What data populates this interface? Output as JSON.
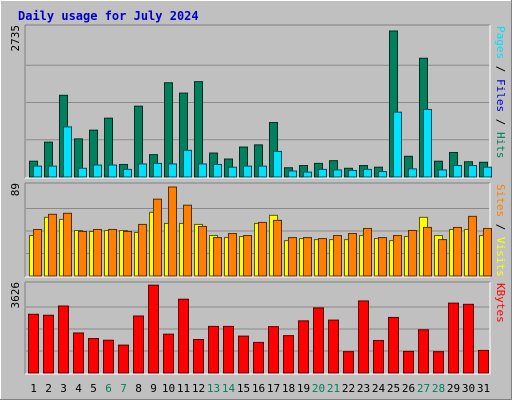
{
  "title": "Daily usage for July 2024",
  "colors": {
    "background": "#c0c0c0",
    "plot_background": "#c0c0c0",
    "hits": "#00805c",
    "files": "#00e0ff",
    "sites": "#ff8000",
    "visits": "#ffff00",
    "kbytes": "#ff0000",
    "title": "#0000cc",
    "weekend_day": "#00805c"
  },
  "chart_data": [
    {
      "type": "bar",
      "panel": "hits-files",
      "ymax_label": "2735",
      "right_label_parts": [
        {
          "text": "Pages",
          "color": "#00e0ff"
        },
        {
          "text": " / ",
          "color": "#000000"
        },
        {
          "text": "Files",
          "color": "#0000cc"
        },
        {
          "text": " / ",
          "color": "#000000"
        },
        {
          "text": "Hits",
          "color": "#00805c"
        }
      ],
      "ylim": [
        0,
        2735
      ],
      "categories": [
        "1",
        "2",
        "3",
        "4",
        "5",
        "6",
        "7",
        "8",
        "9",
        "10",
        "11",
        "12",
        "13",
        "14",
        "15",
        "16",
        "17",
        "18",
        "19",
        "20",
        "21",
        "22",
        "23",
        "24",
        "25",
        "26",
        "27",
        "28",
        "29",
        "30",
        "31"
      ],
      "series": [
        {
          "name": "Hits",
          "color": "#00805c",
          "values": [
            290,
            640,
            1500,
            700,
            860,
            1080,
            230,
            1300,
            410,
            1730,
            1540,
            1750,
            440,
            330,
            550,
            590,
            1000,
            170,
            210,
            250,
            300,
            160,
            210,
            180,
            2680,
            380,
            2180,
            290,
            450,
            280,
            270
          ]
        },
        {
          "name": "Pages",
          "color": "#00e0ff",
          "values": [
            200,
            200,
            920,
            160,
            220,
            220,
            140,
            240,
            250,
            240,
            490,
            240,
            230,
            180,
            200,
            200,
            470,
            110,
            90,
            140,
            130,
            120,
            140,
            100,
            1190,
            150,
            1240,
            130,
            210,
            210,
            180
          ]
        }
      ],
      "legend": "right-vertical"
    },
    {
      "type": "bar",
      "panel": "sites-visits",
      "ymax_label": "89",
      "right_label_parts": [
        {
          "text": "Sites",
          "color": "#ff8000"
        },
        {
          "text": " / ",
          "color": "#000000"
        },
        {
          "text": "Visits",
          "color": "#ffff00"
        }
      ],
      "ylim": [
        0,
        89
      ],
      "categories": [
        "1",
        "2",
        "3",
        "4",
        "5",
        "6",
        "7",
        "8",
        "9",
        "10",
        "11",
        "12",
        "13",
        "14",
        "15",
        "16",
        "17",
        "18",
        "19",
        "20",
        "21",
        "22",
        "23",
        "24",
        "25",
        "26",
        "27",
        "28",
        "29",
        "30",
        "31"
      ],
      "series": [
        {
          "name": "Visits",
          "color": "#ffff00",
          "values": [
            40,
            58,
            56,
            45,
            44,
            45,
            45,
            43,
            63,
            52,
            52,
            51,
            40,
            38,
            39,
            52,
            60,
            35,
            37,
            36,
            36,
            36,
            40,
            37,
            35,
            39,
            58,
            40,
            46,
            46,
            40
          ]
        },
        {
          "name": "Sites",
          "color": "#ff8000",
          "values": [
            46,
            61,
            62,
            44,
            46,
            46,
            44,
            51,
            76,
            88,
            70,
            49,
            38,
            42,
            40,
            53,
            55,
            38,
            38,
            37,
            40,
            42,
            47,
            38,
            40,
            45,
            48,
            36,
            48,
            59,
            47
          ]
        }
      ],
      "legend": "right-vertical"
    },
    {
      "type": "bar",
      "panel": "kbytes",
      "ymax_label": "3626",
      "right_label_parts": [
        {
          "text": "KBytes",
          "color": "#ff0000"
        }
      ],
      "ylim": [
        0,
        3626
      ],
      "categories": [
        "1",
        "2",
        "3",
        "4",
        "5",
        "6",
        "7",
        "8",
        "9",
        "10",
        "11",
        "12",
        "13",
        "14",
        "15",
        "16",
        "17",
        "18",
        "19",
        "20",
        "21",
        "22",
        "23",
        "24",
        "25",
        "26",
        "27",
        "28",
        "29",
        "30",
        "31"
      ],
      "series": [
        {
          "name": "KBytes",
          "color": "#ff0000",
          "values": [
            2420,
            2380,
            2760,
            1650,
            1420,
            1350,
            1150,
            2350,
            3620,
            1600,
            3040,
            1380,
            1920,
            1920,
            1520,
            1260,
            1910,
            1540,
            2150,
            2680,
            2180,
            880,
            2970,
            1340,
            2290,
            890,
            1780,
            880,
            2880,
            2830,
            930
          ]
        }
      ],
      "legend": "right-vertical"
    }
  ],
  "weekend_days": [
    "6",
    "7",
    "13",
    "14",
    "20",
    "21",
    "27",
    "28"
  ]
}
